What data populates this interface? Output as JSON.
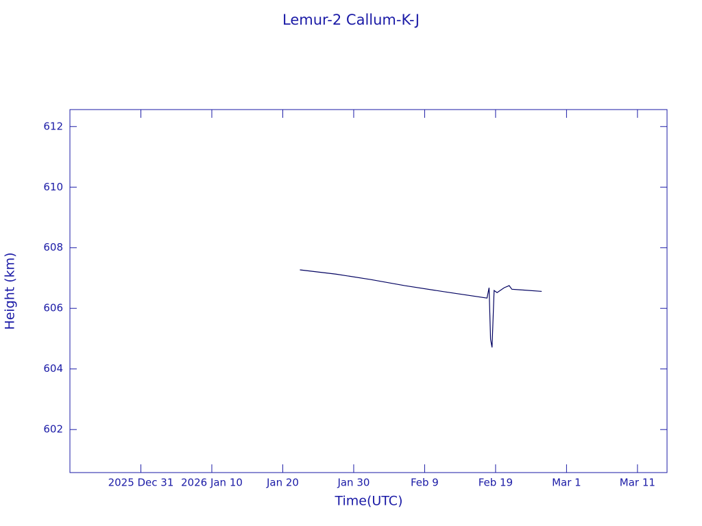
{
  "chart_data": {
    "type": "line",
    "title": "Lemur-2 Callum-K-J",
    "x_label": "Time(UTC)",
    "y_label": "Height (km)",
    "x": [
      "2026-01-22T10:00",
      "2026-01-27T12:00",
      "2026-02-01T10:00",
      "2026-02-06T05:00",
      "2026-02-12T00:00",
      "2026-02-17T19:00",
      "2026-02-18T02:00",
      "2026-02-18T07:00",
      "2026-02-18T12:00",
      "2026-02-18T19:00",
      "2026-02-19T05:00",
      "2026-02-20T05:00",
      "2026-02-20T22:00",
      "2026-02-21T07:00",
      "2026-02-22T14:00",
      "2026-02-25T12:00"
    ],
    "series": [
      {
        "name": "Height",
        "color": "#000060",
        "values": [
          607.27,
          607.13,
          606.95,
          606.75,
          606.54,
          606.34,
          606.68,
          604.98,
          604.71,
          606.59,
          606.52,
          606.68,
          606.75,
          606.63,
          606.61,
          606.56
        ]
      }
    ],
    "xlim": [
      "2025-12-21T00:00",
      "2026-03-15T04:00"
    ],
    "xticks": [
      {
        "value": "2025-12-31T00:00",
        "label": "2025 Dec 31"
      },
      {
        "value": "2026-01-10T00:00",
        "label": "2026 Jan 10"
      },
      {
        "value": "2026-01-20T00:00",
        "label": "Jan 20"
      },
      {
        "value": "2026-01-30T00:00",
        "label": "Jan 30"
      },
      {
        "value": "2026-02-09T00:00",
        "label": "Feb  9"
      },
      {
        "value": "2026-02-19T00:00",
        "label": "Feb 19"
      },
      {
        "value": "2026-03-01T00:00",
        "label": "Mar  1"
      },
      {
        "value": "2026-03-11T00:00",
        "label": "Mar 11"
      }
    ],
    "ylim": [
      600.58,
      612.56
    ],
    "yticks": [
      602,
      604,
      606,
      608,
      610,
      612
    ]
  }
}
